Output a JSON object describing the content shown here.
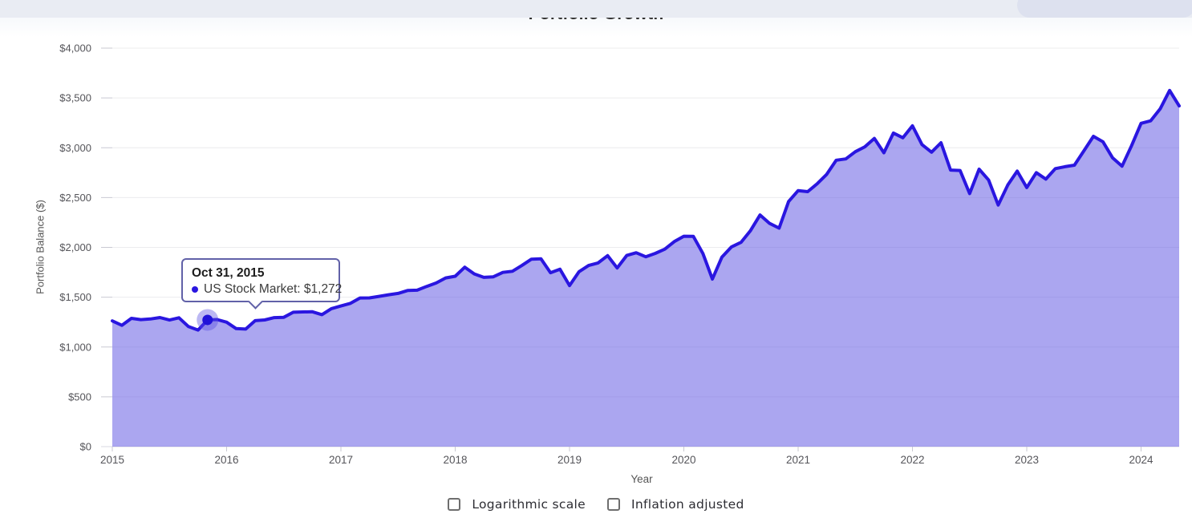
{
  "header": {
    "title": "Portfolio Growth"
  },
  "tooltip": {
    "date": "Oct 31, 2015",
    "series_value": "US Stock Market: $1,272",
    "bullet_color": "#2a16e0"
  },
  "controls": [
    {
      "label": "Logarithmic scale",
      "checked": false
    },
    {
      "label": "Inflation adjusted",
      "checked": false
    }
  ],
  "chart_data": {
    "type": "area",
    "title": "Portfolio Growth",
    "xlabel": "Year",
    "ylabel": "Portfolio Balance ($)",
    "frequency": "monthly",
    "x_start": "Dec 2014",
    "x_end": "Apr 2024",
    "ylim": [
      0,
      4000
    ],
    "ytick_step": 500,
    "ytick_labels": [
      "$0",
      "$500",
      "$1,000",
      "$1,500",
      "$2,000",
      "$2,500",
      "$3,000",
      "$3,500",
      "$4,000"
    ],
    "xtick_labels": [
      "2015",
      "2016",
      "2017",
      "2018",
      "2019",
      "2020",
      "2021",
      "2022",
      "2023",
      "2024"
    ],
    "grid": "horizontal",
    "legend_position": "none",
    "series": [
      {
        "name": "US Stock Market",
        "line_color": "#2a16e0",
        "fill_color": "rgba(87,77,225,0.5)",
        "values": [
          1262,
          1218,
          1288,
          1275,
          1281,
          1296,
          1271,
          1293,
          1205,
          1170,
          1272,
          1276,
          1249,
          1185,
          1180,
          1264,
          1272,
          1295,
          1298,
          1349,
          1352,
          1354,
          1325,
          1385,
          1412,
          1438,
          1492,
          1493,
          1508,
          1524,
          1538,
          1567,
          1570,
          1608,
          1643,
          1693,
          1710,
          1801,
          1734,
          1699,
          1705,
          1749,
          1760,
          1818,
          1882,
          1885,
          1746,
          1781,
          1617,
          1756,
          1818,
          1844,
          1917,
          1793,
          1919,
          1946,
          1906,
          1940,
          1982,
          2058,
          2112,
          2110,
          1938,
          1682,
          1903,
          2005,
          2051,
          2168,
          2325,
          2241,
          2193,
          2460,
          2570,
          2559,
          2639,
          2733,
          2875,
          2888,
          2960,
          3009,
          3094,
          2950,
          3148,
          3100,
          3220,
          3032,
          2955,
          3050,
          2776,
          2772,
          2540,
          2785,
          2675,
          2425,
          2625,
          2765,
          2600,
          2750,
          2685,
          2790,
          2810,
          2825,
          2970,
          3115,
          3060,
          2900,
          2815,
          3020,
          3245,
          3270,
          3390,
          3575,
          3420
        ]
      }
    ],
    "highlight": {
      "index": 10,
      "date": "Oct 31, 2015",
      "series": "US Stock Market",
      "value": 1272,
      "dot_color": "#2012d8",
      "halo_color": "rgba(87,77,225,0.4)"
    }
  }
}
